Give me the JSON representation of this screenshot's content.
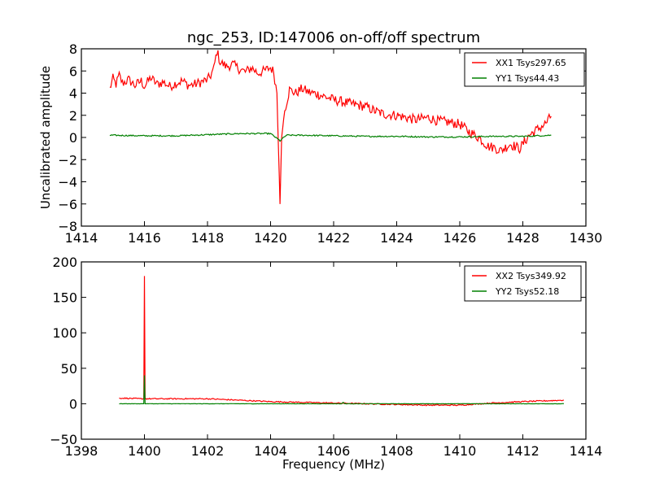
{
  "chart_data": [
    {
      "type": "line",
      "title": "ngc_253, ID:147006 on-off/off spectrum",
      "xlabel": "",
      "ylabel": "Uncalibrated amplitude",
      "xlim": [
        1414,
        1430
      ],
      "ylim": [
        -8,
        8
      ],
      "xticks": [
        "1414",
        "1416",
        "1418",
        "1420",
        "1422",
        "1424",
        "1426",
        "1428",
        "1430"
      ],
      "yticks": [
        "8",
        "6",
        "4",
        "2",
        "0",
        "−2",
        "−4",
        "−6",
        "−8"
      ],
      "xtick_values": [
        1414,
        1416,
        1418,
        1420,
        1422,
        1424,
        1426,
        1428,
        1430
      ],
      "ytick_values": [
        8,
        6,
        4,
        2,
        0,
        -2,
        -4,
        -6,
        -8
      ],
      "grid": false,
      "legend_position": "top-right",
      "series": [
        {
          "name": "XX1 Tsys297.65",
          "color": "#ff0000",
          "x": [
            1414.9,
            1415.0,
            1415.1,
            1415.2,
            1415.3,
            1415.5,
            1415.7,
            1415.9,
            1416.0,
            1416.2,
            1416.4,
            1416.6,
            1416.8,
            1417.0,
            1417.2,
            1417.4,
            1417.6,
            1417.8,
            1418.0,
            1418.1,
            1418.2,
            1418.3,
            1418.4,
            1418.6,
            1418.8,
            1419.0,
            1419.2,
            1419.4,
            1419.6,
            1419.8,
            1420.0,
            1420.1,
            1420.2,
            1420.25,
            1420.3,
            1420.35,
            1420.45,
            1420.6,
            1420.8,
            1421.0,
            1421.2,
            1421.5,
            1421.8,
            1422.0,
            1422.3,
            1422.6,
            1423.0,
            1423.3,
            1423.6,
            1424.0,
            1424.3,
            1424.6,
            1425.0,
            1425.3,
            1425.6,
            1426.0,
            1426.3,
            1426.6,
            1426.9,
            1427.1,
            1427.3,
            1427.6,
            1427.9,
            1428.2,
            1428.5,
            1428.7,
            1428.9
          ],
          "y": [
            4.4,
            5.3,
            4.8,
            5.6,
            4.9,
            5.2,
            4.7,
            5.1,
            4.6,
            5.4,
            4.8,
            5.0,
            4.6,
            4.9,
            5.1,
            4.7,
            4.8,
            5.0,
            5.2,
            5.6,
            6.2,
            7.8,
            6.8,
            6.4,
            6.6,
            6.2,
            5.9,
            6.3,
            5.8,
            6.0,
            6.3,
            5.9,
            4.0,
            -1.0,
            -6.0,
            0.0,
            2.5,
            4.3,
            4.0,
            4.4,
            4.1,
            3.9,
            3.6,
            3.4,
            3.2,
            3.0,
            2.8,
            2.4,
            2.1,
            2.0,
            1.8,
            1.6,
            1.8,
            1.5,
            1.4,
            1.2,
            0.5,
            0.0,
            -0.8,
            -0.9,
            -1.2,
            -0.6,
            -1.0,
            0.2,
            0.8,
            1.2,
            1.9
          ]
        },
        {
          "name": "YY1 Tsys44.43",
          "color": "#008000",
          "x": [
            1414.9,
            1416.0,
            1417.0,
            1418.0,
            1419.0,
            1420.0,
            1420.3,
            1420.5,
            1421.0,
            1422.0,
            1423.0,
            1424.0,
            1425.0,
            1426.0,
            1427.0,
            1428.0,
            1428.9
          ],
          "y": [
            0.2,
            0.15,
            0.15,
            0.25,
            0.35,
            0.35,
            -0.3,
            0.2,
            0.2,
            0.15,
            0.1,
            0.1,
            0.05,
            0.05,
            0.1,
            0.1,
            0.2
          ]
        }
      ]
    },
    {
      "type": "line",
      "title": "",
      "xlabel": "Frequency (MHz)",
      "ylabel": "",
      "xlim": [
        1398,
        1414
      ],
      "ylim": [
        -50,
        200
      ],
      "xticks": [
        "1398",
        "1400",
        "1402",
        "1404",
        "1406",
        "1408",
        "1410",
        "1412",
        "1414"
      ],
      "yticks": [
        "200",
        "150",
        "100",
        "50",
        "0",
        "−50"
      ],
      "xtick_values": [
        1398,
        1400,
        1402,
        1404,
        1406,
        1408,
        1410,
        1412,
        1414
      ],
      "ytick_values": [
        200,
        150,
        100,
        50,
        0,
        -50
      ],
      "grid": false,
      "legend_position": "top-right",
      "series": [
        {
          "name": "XX2 Tsys349.92",
          "color": "#ff0000",
          "x": [
            1399.2,
            1399.9,
            1399.98,
            1400.0,
            1400.02,
            1400.1,
            1401.0,
            1402.0,
            1403.0,
            1404.0,
            1405.0,
            1406.0,
            1407.0,
            1408.0,
            1409.0,
            1410.0,
            1411.0,
            1412.0,
            1413.3
          ],
          "y": [
            8,
            7,
            7,
            180,
            7,
            7,
            7,
            7,
            5,
            3,
            2,
            1,
            0,
            -1,
            -2,
            -2,
            1,
            3,
            5
          ]
        },
        {
          "name": "YY2 Tsys52.18",
          "color": "#008000",
          "x": [
            1399.2,
            1399.98,
            1400.0,
            1400.02,
            1406.25,
            1406.3,
            1406.35,
            1413.3
          ],
          "y": [
            0,
            0,
            40,
            0,
            0,
            2,
            0,
            0
          ]
        }
      ]
    }
  ]
}
